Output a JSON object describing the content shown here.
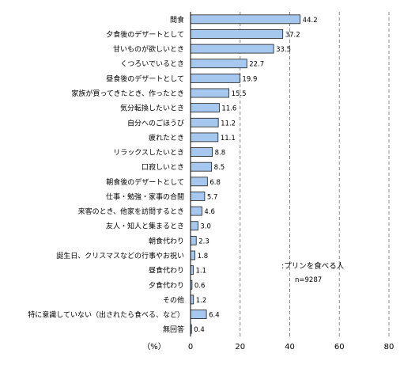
{
  "chart_data": {
    "type": "bar",
    "orientation": "horizontal",
    "categories": [
      "間食",
      "夕食後のデザートとして",
      "甘いものが欲しいとき",
      "くつろいでいるとき",
      "昼食後のデザートとして",
      "家族が買ってきたとき、作ったとき",
      "気分転換したいとき",
      "自分へのごほうび",
      "疲れたとき",
      "リラックスしたいとき",
      "口寂しいとき",
      "朝食後のデザートとして",
      "仕事・勉強・家事の合間",
      "来客のとき、他家を訪問するとき",
      "友人・知人と集まるとき",
      "朝食代わり",
      "誕生日、クリスマスなどの行事やお祝い",
      "昼食代わり",
      "夕食代わり",
      "その他",
      "特に意識していない（出されたら食べる、など）",
      "無回答"
    ],
    "values": [
      44.2,
      37.2,
      33.5,
      22.7,
      19.9,
      15.5,
      11.6,
      11.2,
      11.1,
      8.8,
      8.5,
      6.8,
      5.7,
      4.6,
      3.0,
      2.3,
      1.8,
      1.1,
      0.6,
      1.2,
      6.4,
      0.4
    ],
    "value_labels": [
      "44.2",
      "37.2",
      "33.5",
      "22.7",
      "19.9",
      "15.5",
      "11.6",
      "11.2",
      "11.1",
      "8.8",
      "8.5",
      "6.8",
      "5.7",
      "4.6",
      "3.0",
      "2.3",
      "1.8",
      "1.1",
      "0.6",
      "1.2",
      "6.4",
      "0.4"
    ],
    "xlim": [
      0,
      80
    ],
    "xticks": [
      "0",
      "20",
      "40",
      "60",
      "80"
    ],
    "xlabel": "（%）",
    "grid": "vertical-dashed",
    "legend": {
      "label": ":プリンを食べる人",
      "note": "n=9287",
      "placement": "right-lower"
    },
    "colors": {
      "bar_fill": "#a6c8ee",
      "bar_stroke": "#1a1a1a",
      "grid": "#888888",
      "axis": "#000000"
    }
  }
}
